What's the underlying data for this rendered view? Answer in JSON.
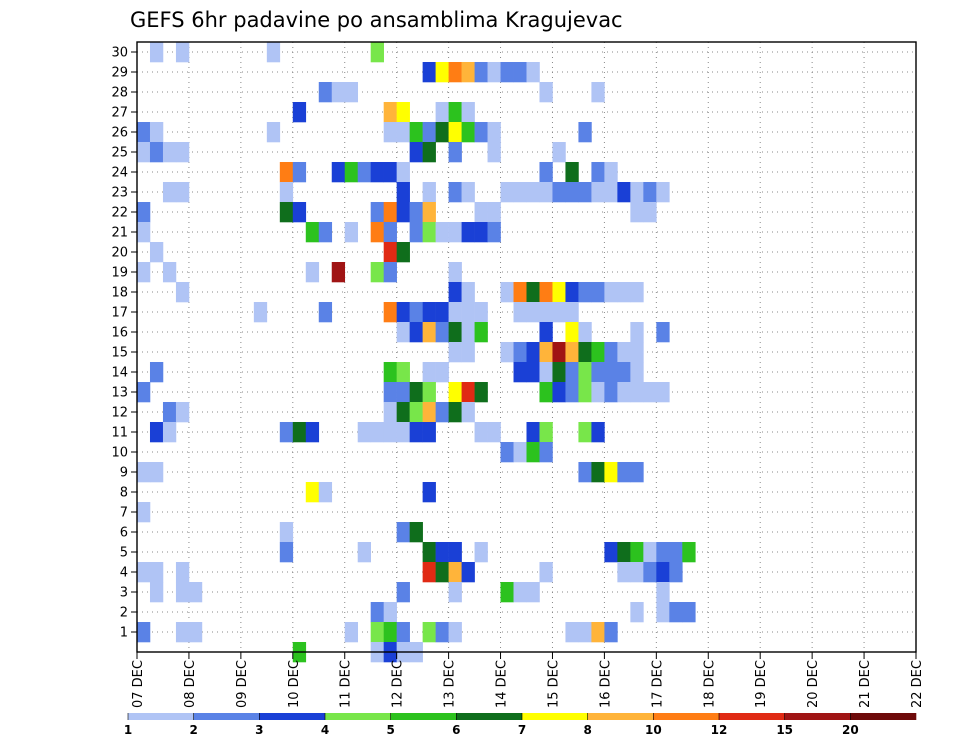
{
  "chart_data": {
    "type": "heatmap",
    "title": "GEFS 6hr padavine po ansamblima Kragujevac",
    "xlabel": "",
    "ylabel": "",
    "x_tick_labels": [
      "07 DEC",
      "08 DEC",
      "09 DEC",
      "10 DEC",
      "11 DEC",
      "12 DEC",
      "13 DEC",
      "14 DEC",
      "15 DEC",
      "16 DEC",
      "17 DEC",
      "18 DEC",
      "19 DEC",
      "20 DEC",
      "21 DEC",
      "22 DEC"
    ],
    "y_tick_labels": [
      "1",
      "2",
      "3",
      "4",
      "5",
      "6",
      "7",
      "8",
      "9",
      "10",
      "11",
      "12",
      "13",
      "14",
      "15",
      "16",
      "17",
      "18",
      "19",
      "20",
      "21",
      "22",
      "23",
      "24",
      "25",
      "26",
      "27",
      "28",
      "29",
      "30"
    ],
    "ylim": [
      0,
      30
    ],
    "x_range_days": [
      0,
      15
    ],
    "time_step_hours": 6,
    "grid": "dotted",
    "colorbar": {
      "labels": [
        "1",
        "2",
        "3",
        "4",
        "5",
        "6",
        "7",
        "8",
        "10",
        "12",
        "15",
        "20"
      ],
      "colors": [
        "#b0c4f5",
        "#5a82e6",
        "#1a40d6",
        "#78e64a",
        "#2cc21e",
        "#0f6e1c",
        "#ffff00",
        "#ffb43a",
        "#ff7d14",
        "#e02a14",
        "#a01414",
        "#6e0a0a"
      ]
    },
    "cells": [
      [
        1,
        30,
        1
      ],
      [
        3,
        30,
        1
      ],
      [
        10,
        30,
        1
      ],
      [
        18,
        30,
        4
      ],
      [
        22,
        29,
        3
      ],
      [
        23,
        29,
        7
      ],
      [
        24,
        29,
        9
      ],
      [
        25,
        29,
        8
      ],
      [
        26,
        29,
        2
      ],
      [
        27,
        29,
        1
      ],
      [
        28,
        29,
        2
      ],
      [
        29,
        29,
        2
      ],
      [
        30,
        29,
        1
      ],
      [
        14,
        28,
        2
      ],
      [
        15,
        28,
        1
      ],
      [
        16,
        28,
        1
      ],
      [
        31,
        28,
        1
      ],
      [
        35,
        28,
        1
      ],
      [
        12,
        27,
        3
      ],
      [
        19,
        27,
        8
      ],
      [
        20,
        27,
        7
      ],
      [
        23,
        27,
        1
      ],
      [
        24,
        27,
        5
      ],
      [
        25,
        27,
        1
      ],
      [
        0,
        26,
        2
      ],
      [
        1,
        26,
        1
      ],
      [
        10,
        26,
        1
      ],
      [
        19,
        26,
        1
      ],
      [
        20,
        26,
        1
      ],
      [
        21,
        26,
        5
      ],
      [
        22,
        26,
        2
      ],
      [
        23,
        26,
        6
      ],
      [
        24,
        26,
        7
      ],
      [
        25,
        26,
        5
      ],
      [
        26,
        26,
        2
      ],
      [
        27,
        26,
        1
      ],
      [
        34,
        26,
        2
      ],
      [
        0,
        25,
        1
      ],
      [
        1,
        25,
        2
      ],
      [
        2,
        25,
        1
      ],
      [
        3,
        25,
        1
      ],
      [
        21,
        25,
        3
      ],
      [
        22,
        25,
        6
      ],
      [
        24,
        25,
        2
      ],
      [
        27,
        25,
        1
      ],
      [
        32,
        25,
        1
      ],
      [
        11,
        24,
        9
      ],
      [
        12,
        24,
        2
      ],
      [
        15,
        24,
        3
      ],
      [
        16,
        24,
        5
      ],
      [
        17,
        24,
        2
      ],
      [
        18,
        24,
        3
      ],
      [
        19,
        24,
        3
      ],
      [
        20,
        24,
        1
      ],
      [
        31,
        24,
        2
      ],
      [
        33,
        24,
        6
      ],
      [
        35,
        24,
        2
      ],
      [
        36,
        24,
        1
      ],
      [
        2,
        23,
        1
      ],
      [
        3,
        23,
        1
      ],
      [
        11,
        23,
        1
      ],
      [
        20,
        23,
        3
      ],
      [
        22,
        23,
        1
      ],
      [
        24,
        23,
        2
      ],
      [
        25,
        23,
        1
      ],
      [
        28,
        23,
        1
      ],
      [
        29,
        23,
        1
      ],
      [
        30,
        23,
        1
      ],
      [
        31,
        23,
        1
      ],
      [
        32,
        23,
        2
      ],
      [
        33,
        23,
        2
      ],
      [
        34,
        23,
        2
      ],
      [
        35,
        23,
        1
      ],
      [
        36,
        23,
        1
      ],
      [
        37,
        23,
        3
      ],
      [
        38,
        23,
        1
      ],
      [
        39,
        23,
        2
      ],
      [
        40,
        23,
        1
      ],
      [
        0,
        22,
        2
      ],
      [
        11,
        22,
        6
      ],
      [
        12,
        22,
        3
      ],
      [
        18,
        22,
        2
      ],
      [
        19,
        22,
        9
      ],
      [
        20,
        22,
        3
      ],
      [
        21,
        22,
        2
      ],
      [
        22,
        22,
        8
      ],
      [
        26,
        22,
        1
      ],
      [
        27,
        22,
        1
      ],
      [
        38,
        22,
        1
      ],
      [
        39,
        22,
        1
      ],
      [
        0,
        21,
        1
      ],
      [
        13,
        21,
        5
      ],
      [
        14,
        21,
        2
      ],
      [
        16,
        21,
        1
      ],
      [
        18,
        21,
        9
      ],
      [
        19,
        21,
        2
      ],
      [
        21,
        21,
        2
      ],
      [
        22,
        21,
        4
      ],
      [
        23,
        21,
        1
      ],
      [
        24,
        21,
        1
      ],
      [
        25,
        21,
        3
      ],
      [
        26,
        21,
        3
      ],
      [
        27,
        21,
        2
      ],
      [
        1,
        20,
        1
      ],
      [
        19,
        20,
        10
      ],
      [
        20,
        20,
        6
      ],
      [
        0,
        19,
        1
      ],
      [
        2,
        19,
        1
      ],
      [
        13,
        19,
        1
      ],
      [
        15,
        19,
        11
      ],
      [
        18,
        19,
        4
      ],
      [
        19,
        19,
        2
      ],
      [
        24,
        19,
        1
      ],
      [
        3,
        18,
        1
      ],
      [
        24,
        18,
        3
      ],
      [
        25,
        18,
        1
      ],
      [
        28,
        18,
        1
      ],
      [
        29,
        18,
        9
      ],
      [
        30,
        18,
        6
      ],
      [
        31,
        18,
        9
      ],
      [
        32,
        18,
        7
      ],
      [
        33,
        18,
        3
      ],
      [
        34,
        18,
        2
      ],
      [
        35,
        18,
        2
      ],
      [
        36,
        18,
        1
      ],
      [
        37,
        18,
        1
      ],
      [
        38,
        18,
        1
      ],
      [
        9,
        17,
        1
      ],
      [
        14,
        17,
        2
      ],
      [
        19,
        17,
        9
      ],
      [
        20,
        17,
        3
      ],
      [
        21,
        17,
        2
      ],
      [
        22,
        17,
        3
      ],
      [
        23,
        17,
        3
      ],
      [
        24,
        17,
        1
      ],
      [
        25,
        17,
        1
      ],
      [
        26,
        17,
        1
      ],
      [
        29,
        17,
        1
      ],
      [
        30,
        17,
        1
      ],
      [
        31,
        17,
        1
      ],
      [
        32,
        17,
        1
      ],
      [
        33,
        17,
        1
      ],
      [
        20,
        16,
        1
      ],
      [
        21,
        16,
        3
      ],
      [
        22,
        16,
        8
      ],
      [
        23,
        16,
        2
      ],
      [
        24,
        16,
        6
      ],
      [
        25,
        16,
        1
      ],
      [
        26,
        16,
        5
      ],
      [
        31,
        16,
        3
      ],
      [
        33,
        16,
        7
      ],
      [
        34,
        16,
        1
      ],
      [
        38,
        16,
        1
      ],
      [
        40,
        16,
        2
      ],
      [
        24,
        15,
        1
      ],
      [
        25,
        15,
        1
      ],
      [
        28,
        15,
        1
      ],
      [
        29,
        15,
        2
      ],
      [
        30,
        15,
        3
      ],
      [
        31,
        15,
        8
      ],
      [
        32,
        15,
        11
      ],
      [
        33,
        15,
        8
      ],
      [
        34,
        15,
        6
      ],
      [
        35,
        15,
        5
      ],
      [
        36,
        15,
        2
      ],
      [
        37,
        15,
        1
      ],
      [
        38,
        15,
        1
      ],
      [
        1,
        14,
        2
      ],
      [
        19,
        14,
        5
      ],
      [
        20,
        14,
        4
      ],
      [
        22,
        14,
        1
      ],
      [
        23,
        14,
        1
      ],
      [
        29,
        14,
        3
      ],
      [
        30,
        14,
        3
      ],
      [
        31,
        14,
        1
      ],
      [
        32,
        14,
        6
      ],
      [
        33,
        14,
        2
      ],
      [
        34,
        14,
        4
      ],
      [
        35,
        14,
        2
      ],
      [
        36,
        14,
        2
      ],
      [
        37,
        14,
        2
      ],
      [
        38,
        14,
        1
      ],
      [
        0,
        13,
        2
      ],
      [
        19,
        13,
        2
      ],
      [
        20,
        13,
        2
      ],
      [
        21,
        13,
        6
      ],
      [
        22,
        13,
        4
      ],
      [
        24,
        13,
        7
      ],
      [
        25,
        13,
        10
      ],
      [
        26,
        13,
        6
      ],
      [
        31,
        13,
        5
      ],
      [
        32,
        13,
        3
      ],
      [
        33,
        13,
        2
      ],
      [
        34,
        13,
        4
      ],
      [
        35,
        13,
        1
      ],
      [
        36,
        13,
        2
      ],
      [
        37,
        13,
        1
      ],
      [
        38,
        13,
        1
      ],
      [
        39,
        13,
        1
      ],
      [
        40,
        13,
        1
      ],
      [
        2,
        12,
        2
      ],
      [
        3,
        12,
        1
      ],
      [
        19,
        12,
        1
      ],
      [
        20,
        12,
        6
      ],
      [
        21,
        12,
        4
      ],
      [
        22,
        12,
        8
      ],
      [
        23,
        12,
        2
      ],
      [
        24,
        12,
        6
      ],
      [
        25,
        12,
        1
      ],
      [
        1,
        11,
        3
      ],
      [
        2,
        11,
        1
      ],
      [
        11,
        11,
        2
      ],
      [
        12,
        11,
        6
      ],
      [
        13,
        11,
        3
      ],
      [
        17,
        11,
        1
      ],
      [
        18,
        11,
        1
      ],
      [
        19,
        11,
        1
      ],
      [
        20,
        11,
        1
      ],
      [
        21,
        11,
        3
      ],
      [
        22,
        11,
        3
      ],
      [
        26,
        11,
        1
      ],
      [
        27,
        11,
        1
      ],
      [
        30,
        11,
        3
      ],
      [
        31,
        11,
        4
      ],
      [
        34,
        11,
        4
      ],
      [
        35,
        11,
        3
      ],
      [
        28,
        10,
        2
      ],
      [
        29,
        10,
        1
      ],
      [
        30,
        10,
        5
      ],
      [
        31,
        10,
        2
      ],
      [
        0,
        9,
        1
      ],
      [
        1,
        9,
        1
      ],
      [
        34,
        9,
        2
      ],
      [
        35,
        9,
        6
      ],
      [
        36,
        9,
        7
      ],
      [
        37,
        9,
        2
      ],
      [
        38,
        9,
        2
      ],
      [
        13,
        8,
        7
      ],
      [
        14,
        8,
        1
      ],
      [
        22,
        8,
        3
      ],
      [
        0,
        7,
        1
      ],
      [
        11,
        6,
        1
      ],
      [
        20,
        6,
        2
      ],
      [
        21,
        6,
        6
      ],
      [
        11,
        5,
        2
      ],
      [
        17,
        5,
        1
      ],
      [
        22,
        5,
        6
      ],
      [
        23,
        5,
        3
      ],
      [
        24,
        5,
        3
      ],
      [
        26,
        5,
        1
      ],
      [
        36,
        5,
        3
      ],
      [
        37,
        5,
        6
      ],
      [
        38,
        5,
        5
      ],
      [
        39,
        5,
        1
      ],
      [
        40,
        5,
        2
      ],
      [
        41,
        5,
        2
      ],
      [
        42,
        5,
        5
      ],
      [
        0,
        4,
        1
      ],
      [
        1,
        4,
        1
      ],
      [
        3,
        4,
        1
      ],
      [
        22,
        4,
        10
      ],
      [
        23,
        4,
        6
      ],
      [
        24,
        4,
        8
      ],
      [
        25,
        4,
        3
      ],
      [
        31,
        4,
        1
      ],
      [
        37,
        4,
        1
      ],
      [
        38,
        4,
        1
      ],
      [
        39,
        4,
        2
      ],
      [
        40,
        4,
        3
      ],
      [
        41,
        4,
        2
      ],
      [
        1,
        3,
        1
      ],
      [
        3,
        3,
        1
      ],
      [
        4,
        3,
        1
      ],
      [
        20,
        3,
        2
      ],
      [
        24,
        3,
        1
      ],
      [
        28,
        3,
        5
      ],
      [
        29,
        3,
        1
      ],
      [
        30,
        3,
        1
      ],
      [
        40,
        3,
        1
      ],
      [
        18,
        2,
        2
      ],
      [
        19,
        2,
        1
      ],
      [
        38,
        2,
        1
      ],
      [
        40,
        2,
        1
      ],
      [
        41,
        2,
        2
      ],
      [
        42,
        2,
        2
      ],
      [
        0,
        1,
        2
      ],
      [
        3,
        1,
        1
      ],
      [
        4,
        1,
        1
      ],
      [
        16,
        1,
        1
      ],
      [
        18,
        1,
        4
      ],
      [
        19,
        1,
        5
      ],
      [
        20,
        1,
        2
      ],
      [
        22,
        1,
        4
      ],
      [
        23,
        1,
        2
      ],
      [
        24,
        1,
        1
      ],
      [
        33,
        1,
        1
      ],
      [
        34,
        1,
        1
      ],
      [
        35,
        1,
        8
      ],
      [
        36,
        1,
        2
      ],
      [
        12,
        0,
        5
      ],
      [
        18,
        0,
        1
      ],
      [
        19,
        0,
        3
      ],
      [
        20,
        0,
        1
      ],
      [
        21,
        0,
        1
      ]
    ]
  }
}
